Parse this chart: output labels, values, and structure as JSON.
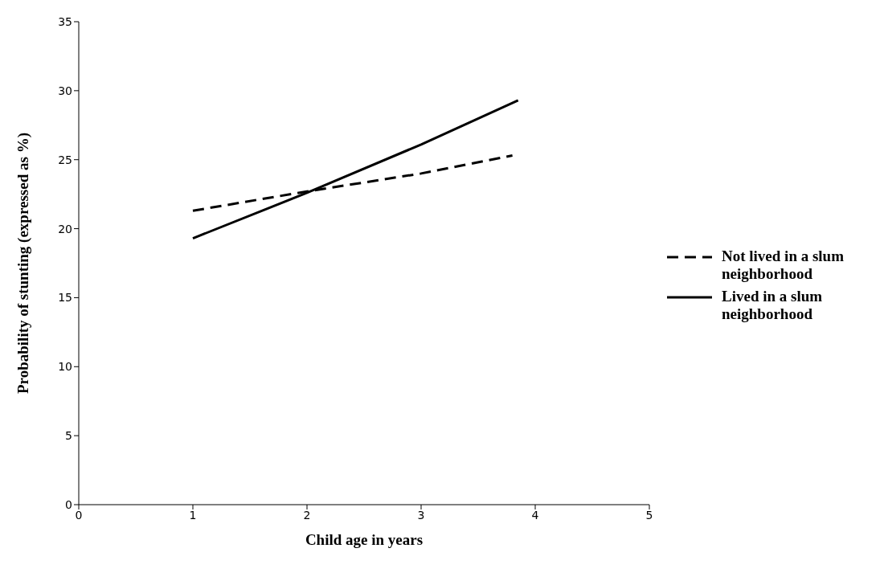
{
  "chart_data": {
    "type": "line",
    "xlabel": "Child age in years",
    "ylabel": "Probability of stunting (expressed as %)",
    "xlim": [
      0,
      5
    ],
    "xticks": [
      0,
      1,
      2,
      3,
      4,
      5
    ],
    "ylim": [
      0,
      35
    ],
    "yticks": [
      0,
      5,
      10,
      15,
      20,
      25,
      30,
      35
    ],
    "grid": false,
    "legend": "right",
    "marker": "none",
    "series": [
      {
        "name": "Not lived in a slum neighborhood",
        "color": "#000000",
        "line_style": "dashed",
        "x": [
          1,
          2,
          3,
          3.8
        ],
        "values": [
          21.3,
          22.7,
          24.0,
          25.3
        ]
      },
      {
        "name": "Lived in a slum neighborhood",
        "color": "#000000",
        "line_style": "solid",
        "x": [
          1,
          2,
          3,
          3.85
        ],
        "values": [
          19.3,
          22.6,
          26.1,
          29.3
        ]
      }
    ]
  }
}
